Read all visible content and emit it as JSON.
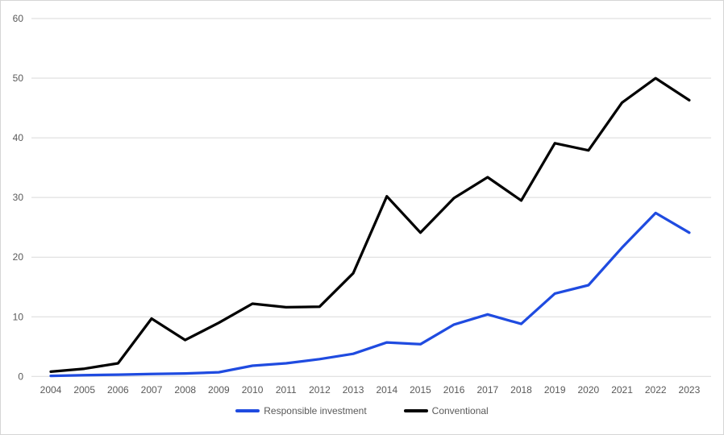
{
  "chart": {
    "background": "#ffffff",
    "border_color": "#d6d6d6",
    "gridline_color": "#d9d9d9",
    "axis_text_color": "#595959"
  },
  "chart_data": {
    "type": "line",
    "title": "",
    "x": [
      2004,
      2005,
      2006,
      2007,
      2008,
      2009,
      2010,
      2011,
      2012,
      2013,
      2014,
      2015,
      2016,
      2017,
      2018,
      2019,
      2020,
      2021,
      2022,
      2023
    ],
    "series": [
      {
        "name": "Responsible investment",
        "color": "#1f4be0",
        "values": [
          0.1,
          0.2,
          0.3,
          0.4,
          0.5,
          0.7,
          1.8,
          2.2,
          2.9,
          3.8,
          5.7,
          5.4,
          8.7,
          10.4,
          8.8,
          13.9,
          15.3,
          21.6,
          27.4,
          24.1
        ]
      },
      {
        "name": "Conventional",
        "color": "#000000",
        "values": [
          0.8,
          1.3,
          2.2,
          9.7,
          6.1,
          9.0,
          12.2,
          11.6,
          11.7,
          17.3,
          30.2,
          24.1,
          29.9,
          33.4,
          29.5,
          39.1,
          37.9,
          45.9,
          50.0,
          46.3
        ]
      }
    ],
    "ylim": [
      0,
      60
    ],
    "ytick_step": 10,
    "yticks": [
      0,
      10,
      20,
      30,
      40,
      50,
      60
    ],
    "grid": "horizontal",
    "legend_position": "bottom"
  }
}
